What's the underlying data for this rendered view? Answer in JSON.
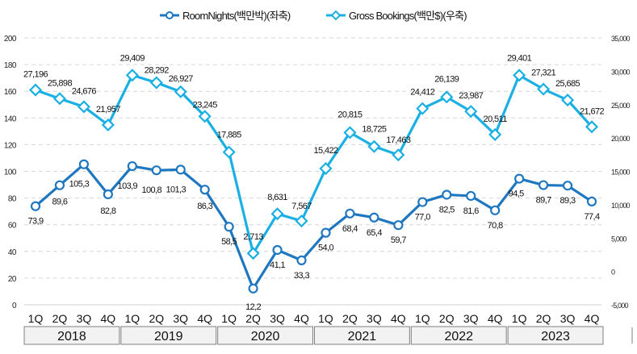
{
  "chart_data": {
    "type": "line",
    "title": "",
    "categories": [
      "1Q",
      "2Q",
      "3Q",
      "4Q",
      "1Q",
      "2Q",
      "3Q",
      "4Q",
      "1Q",
      "2Q",
      "3Q",
      "4Q",
      "1Q",
      "2Q",
      "3Q",
      "4Q",
      "1Q",
      "2Q",
      "3Q",
      "4Q",
      "1Q",
      "2Q",
      "3Q",
      "4Q"
    ],
    "years": [
      "2018",
      "2019",
      "2020",
      "2021",
      "2022",
      "2023"
    ],
    "series": [
      {
        "name": "RoomNights(백만박)(좌축)",
        "axis": "left",
        "color": "#1F77C0",
        "marker": "circle",
        "values": [
          73.9,
          89.6,
          105.3,
          82.8,
          103.9,
          100.8,
          101.3,
          86.3,
          58.5,
          12.2,
          41.1,
          33.3,
          54.0,
          68.4,
          65.4,
          59.7,
          77.0,
          82.5,
          81.6,
          70.8,
          94.5,
          89.7,
          89.3,
          77.4
        ],
        "labels": [
          "73,9",
          "89,6",
          "105,3",
          "82,8",
          "103,9",
          "100,8",
          "101,3",
          "86,3",
          "58,5",
          "12,2",
          "41,1",
          "33,3",
          "54,0",
          "68,4",
          "65,4",
          "59,7",
          "77,0",
          "82,5",
          "81,6",
          "70,8",
          "94,5",
          "89,7",
          "89,3",
          "77,4"
        ]
      },
      {
        "name": "Gross Bookings(백만$)(우축)",
        "axis": "right",
        "color": "#1AB0E3",
        "marker": "diamond",
        "values": [
          27196,
          25898,
          24676,
          21957,
          29409,
          28292,
          26927,
          23245,
          17885,
          2713,
          8631,
          7567,
          15422,
          20815,
          18725,
          17463,
          24412,
          26139,
          23987,
          20511,
          29401,
          27321,
          25685,
          21672
        ],
        "labels": [
          "27,196",
          "25,898",
          "24,676",
          "21,957",
          "29,409",
          "28,292",
          "26,927",
          "23,245",
          "17,885",
          "2,713",
          "8,631",
          "7,567",
          "15,422",
          "20,815",
          "18,725",
          "17,463",
          "24,412",
          "26,139",
          "23,987",
          "20,511",
          "29,401",
          "27,321",
          "25,685",
          "21,672"
        ]
      }
    ],
    "left_axis": {
      "min": 0,
      "max": 200,
      "step": 20,
      "ticks": [
        "0",
        "20",
        "40",
        "60",
        "80",
        "100",
        "120",
        "140",
        "160",
        "180",
        "200"
      ]
    },
    "right_axis": {
      "min": -5000,
      "max": 35000,
      "step": 5000,
      "ticks": [
        "-5,000",
        "0",
        "5,000",
        "10,000",
        "15,000",
        "20,000",
        "25,000",
        "30,000",
        "35,000"
      ]
    },
    "grid": true,
    "legend_position": "top-center",
    "xlabel": "",
    "ylabel": ""
  }
}
